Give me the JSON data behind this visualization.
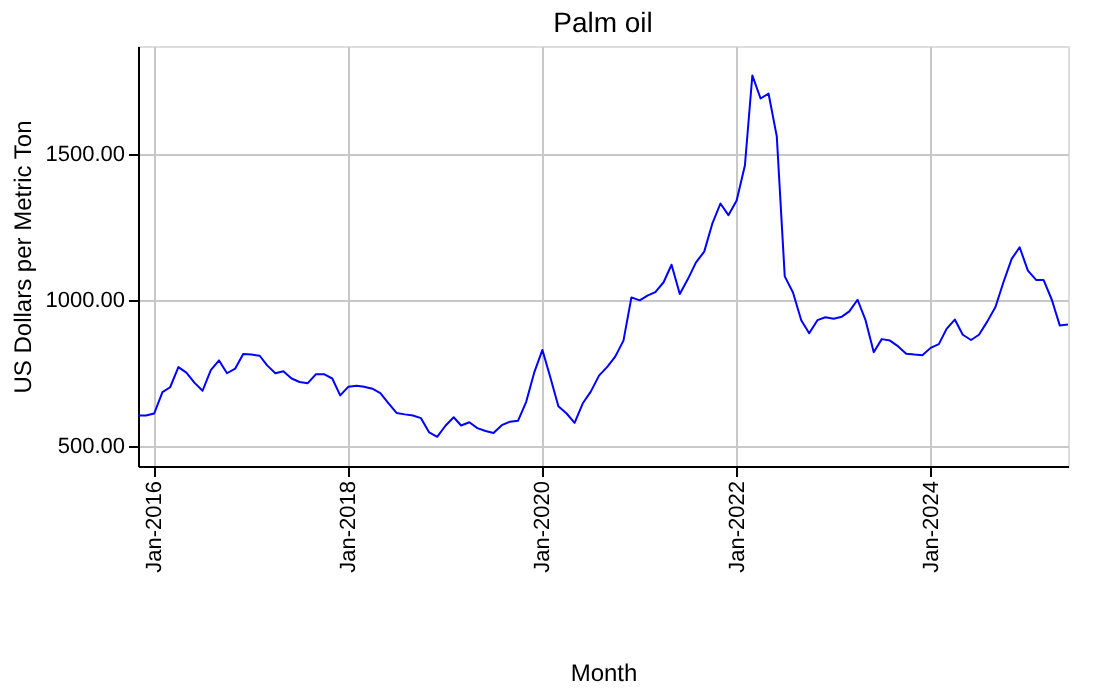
{
  "chart_data": {
    "type": "line",
    "title": "Palm oil",
    "xlabel": "Month",
    "ylabel": "US Dollars per Metric Ton",
    "x": [
      "2015-11",
      "2015-12",
      "2016-01",
      "2016-02",
      "2016-03",
      "2016-04",
      "2016-05",
      "2016-06",
      "2016-07",
      "2016-08",
      "2016-09",
      "2016-10",
      "2016-11",
      "2016-12",
      "2017-01",
      "2017-02",
      "2017-03",
      "2017-04",
      "2017-05",
      "2017-06",
      "2017-07",
      "2017-08",
      "2017-09",
      "2017-10",
      "2017-11",
      "2017-12",
      "2018-01",
      "2018-02",
      "2018-03",
      "2018-04",
      "2018-05",
      "2018-06",
      "2018-07",
      "2018-08",
      "2018-09",
      "2018-10",
      "2018-11",
      "2018-12",
      "2019-01",
      "2019-02",
      "2019-03",
      "2019-04",
      "2019-05",
      "2019-06",
      "2019-07",
      "2019-08",
      "2019-09",
      "2019-10",
      "2019-11",
      "2019-12",
      "2020-01",
      "2020-02",
      "2020-03",
      "2020-04",
      "2020-05",
      "2020-06",
      "2020-07",
      "2020-08",
      "2020-09",
      "2020-10",
      "2020-11",
      "2020-12",
      "2021-01",
      "2021-02",
      "2021-03",
      "2021-04",
      "2021-05",
      "2021-06",
      "2021-07",
      "2021-08",
      "2021-09",
      "2021-10",
      "2021-11",
      "2021-12",
      "2022-01",
      "2022-02",
      "2022-03",
      "2022-04",
      "2022-05",
      "2022-06",
      "2022-07",
      "2022-08",
      "2022-09",
      "2022-10",
      "2022-11",
      "2022-12",
      "2023-01",
      "2023-02",
      "2023-03",
      "2023-04",
      "2023-05",
      "2023-06",
      "2023-07",
      "2023-08",
      "2023-09",
      "2023-10",
      "2023-11",
      "2023-12",
      "2024-01",
      "2024-02",
      "2024-03",
      "2024-04",
      "2024-05",
      "2024-06",
      "2024-07",
      "2024-08",
      "2024-09",
      "2024-10",
      "2024-11",
      "2024-12",
      "2025-01",
      "2025-02",
      "2025-03",
      "2025-04",
      "2025-05",
      "2025-06"
    ],
    "series": [
      {
        "color": "#0000ff",
        "values": [
          603,
          603,
          610,
          683,
          700,
          769,
          750,
          715,
          688,
          759,
          792,
          748,
          764,
          814,
          812,
          808,
          775,
          748,
          755,
          730,
          718,
          714,
          745,
          745,
          730,
          672,
          702,
          705,
          702,
          695,
          680,
          645,
          612,
          607,
          603,
          594,
          545,
          530,
          568,
          597,
          569,
          580,
          560,
          550,
          543,
          570,
          582,
          585,
          650,
          750,
          828,
          730,
          635,
          610,
          578,
          645,
          685,
          740,
          770,
          805,
          860,
          1008,
          998,
          1015,
          1026,
          1060,
          1120,
          1020,
          1070,
          1128,
          1165,
          1260,
          1330,
          1290,
          1340,
          1460,
          1769,
          1690,
          1707,
          1560,
          1080,
          1025,
          930,
          885,
          930,
          940,
          935,
          942,
          960,
          1000,
          930,
          820,
          865,
          860,
          840,
          815,
          812,
          810,
          835,
          848,
          900,
          932,
          880,
          862,
          880,
          925,
          975,
          1060,
          1140,
          1180,
          1100,
          1068,
          1068,
          1000,
          912,
          915
        ]
      }
    ],
    "xlim": [
      "2015-11",
      "2025-06"
    ],
    "xticks": [
      {
        "value": "2016-01",
        "label": "Jan-2016"
      },
      {
        "value": "2018-01",
        "label": "Jan-2018"
      },
      {
        "value": "2020-01",
        "label": "Jan-2020"
      },
      {
        "value": "2022-01",
        "label": "Jan-2022"
      },
      {
        "value": "2024-01",
        "label": "Jan-2024"
      }
    ],
    "ylim": [
      430,
      1870
    ],
    "yticks": [
      {
        "value": 500,
        "label": "500.00"
      },
      {
        "value": 1000,
        "label": "1000.00"
      },
      {
        "value": 1500,
        "label": "1500.00"
      }
    ],
    "grid": true,
    "marker": "none",
    "line_style": "solid"
  }
}
